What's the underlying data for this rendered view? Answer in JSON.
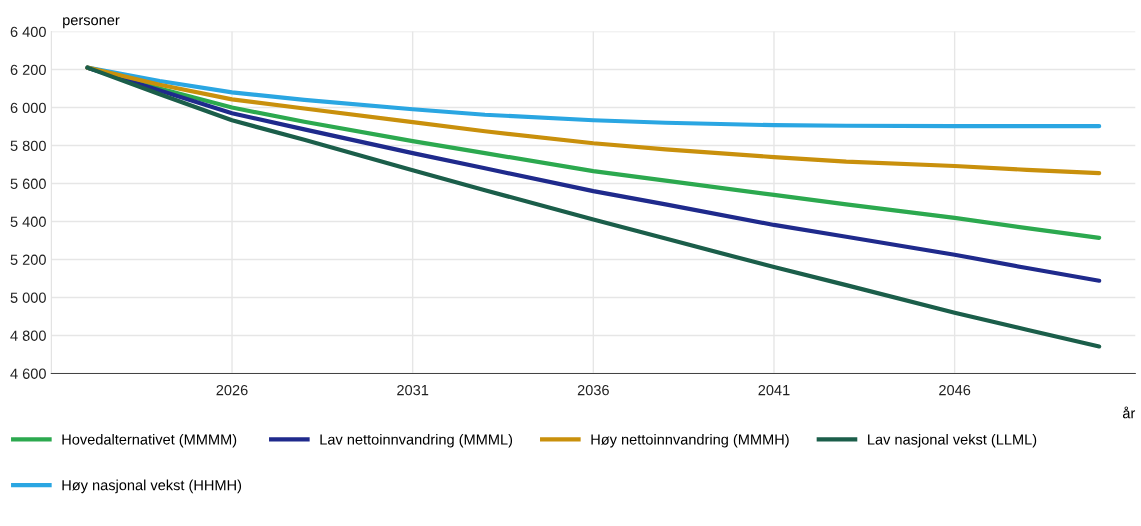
{
  "chart_data": {
    "type": "line",
    "ylabel": "personer",
    "xlabel": "år",
    "x": [
      2022,
      2024,
      2026,
      2028,
      2031,
      2033,
      2036,
      2038,
      2041,
      2043,
      2046,
      2048,
      2050
    ],
    "xlim": [
      2021,
      2051
    ],
    "xticks": [
      2026,
      2031,
      2036,
      2041,
      2046
    ],
    "ylim": [
      4600,
      6400
    ],
    "yticks": [
      {
        "value": 4600,
        "label": "4 600"
      },
      {
        "value": 4800,
        "label": "4 800"
      },
      {
        "value": 5000,
        "label": "5 000"
      },
      {
        "value": 5200,
        "label": "5 200"
      },
      {
        "value": 5400,
        "label": "5 400"
      },
      {
        "value": 5600,
        "label": "5 600"
      },
      {
        "value": 5800,
        "label": "5 800"
      },
      {
        "value": 6000,
        "label": "6 000"
      },
      {
        "value": 6200,
        "label": "6 200"
      },
      {
        "value": 6400,
        "label": "6 400"
      }
    ],
    "grid": true,
    "legend": "bottom",
    "marker": "none",
    "line_style": "solid",
    "series": [
      {
        "name": "Hovedalternativet (MMMM)",
        "color": "#2ca94f",
        "values": [
          6210,
          6100,
          6000,
          5925,
          5823,
          5760,
          5665,
          5615,
          5540,
          5490,
          5419,
          5365,
          5314
        ]
      },
      {
        "name": "Høy nasjonal vekst (HHMH)",
        "color": "#2aa6e2",
        "values": [
          6210,
          6140,
          6080,
          6040,
          5991,
          5962,
          5933,
          5920,
          5907,
          5904,
          5902,
          5902,
          5902
        ]
      },
      {
        "name": "Lav nettoinnvandring (MMML)",
        "color": "#1f2a8c",
        "values": [
          6210,
          6090,
          5970,
          5885,
          5760,
          5680,
          5560,
          5490,
          5382,
          5320,
          5225,
          5155,
          5088
        ]
      },
      {
        "name": "Høy nettoinnvandring (MMMH)",
        "color": "#c9900c",
        "values": [
          6210,
          6120,
          6043,
          5995,
          5923,
          5875,
          5812,
          5780,
          5739,
          5715,
          5692,
          5672,
          5655
        ]
      },
      {
        "name": "Lav nasjonal vekst (LLML)",
        "color": "#1b5e4a",
        "values": [
          6210,
          6070,
          5933,
          5830,
          5670,
          5565,
          5410,
          5310,
          5160,
          5065,
          4920,
          4830,
          4742
        ]
      }
    ]
  }
}
